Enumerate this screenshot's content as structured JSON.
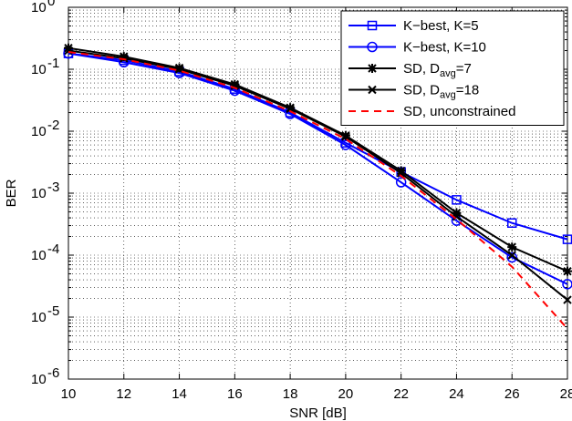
{
  "chart_data": {
    "type": "line",
    "xlabel": "SNR [dB]",
    "ylabel": "BER",
    "x_scale": "linear",
    "y_scale": "log",
    "xlim": [
      10,
      28
    ],
    "ylim": [
      1e-06,
      1
    ],
    "x_ticks": [
      "10",
      "12",
      "14",
      "16",
      "18",
      "20",
      "22",
      "24",
      "26",
      "28"
    ],
    "y_ticks": [
      {
        "base": "10",
        "exp": "0"
      },
      {
        "base": "10",
        "exp": "-1"
      },
      {
        "base": "10",
        "exp": "-2"
      },
      {
        "base": "10",
        "exp": "-3"
      },
      {
        "base": "10",
        "exp": "-4"
      },
      {
        "base": "10",
        "exp": "-5"
      },
      {
        "base": "10",
        "exp": "-6"
      }
    ],
    "grid": true,
    "legend_position": "top-right",
    "x": [
      10,
      12,
      14,
      16,
      18,
      20,
      22,
      24,
      26,
      28
    ],
    "series": [
      {
        "name": "K−best, K=5",
        "name_main": "K−best, K=5",
        "name_sub": "",
        "name_tail": "",
        "color": "#0000ff",
        "dash": "solid",
        "marker": "square",
        "values": [
          0.18,
          0.14,
          0.092,
          0.048,
          0.02,
          0.0065,
          0.0022,
          0.00078,
          0.00033,
          0.00018
        ]
      },
      {
        "name": "K−best, K=10",
        "name_main": "K−best, K=10",
        "name_sub": "",
        "name_tail": "",
        "color": "#0000ff",
        "dash": "solid",
        "marker": "circle",
        "values": [
          0.18,
          0.13,
          0.087,
          0.045,
          0.019,
          0.006,
          0.0015,
          0.00036,
          9.2e-05,
          3.4e-05
        ]
      },
      {
        "name": "SD, Davg=7",
        "name_main": "SD, D",
        "name_sub": "avg",
        "name_tail": "=7",
        "color": "#000000",
        "dash": "solid",
        "marker": "asterisk",
        "values": [
          0.22,
          0.16,
          0.105,
          0.057,
          0.024,
          0.0085,
          0.0023,
          0.00048,
          0.000135,
          5.5e-05
        ]
      },
      {
        "name": "SD, Davg=18",
        "name_main": "SD, D",
        "name_sub": "avg",
        "name_tail": "=18",
        "color": "#000000",
        "dash": "solid",
        "marker": "x",
        "values": [
          0.2,
          0.15,
          0.1,
          0.054,
          0.023,
          0.0082,
          0.0021,
          0.00042,
          0.0001,
          1.9e-05
        ]
      },
      {
        "name": "SD, unconstrained",
        "name_main": "SD, unconstrained",
        "name_sub": "",
        "name_tail": "",
        "color": "#ff0000",
        "dash": "dashed",
        "marker": "none",
        "values": [
          0.19,
          0.145,
          0.095,
          0.05,
          0.021,
          0.0075,
          0.0019,
          0.00038,
          6.5e-05,
          6.5e-06
        ]
      }
    ]
  }
}
